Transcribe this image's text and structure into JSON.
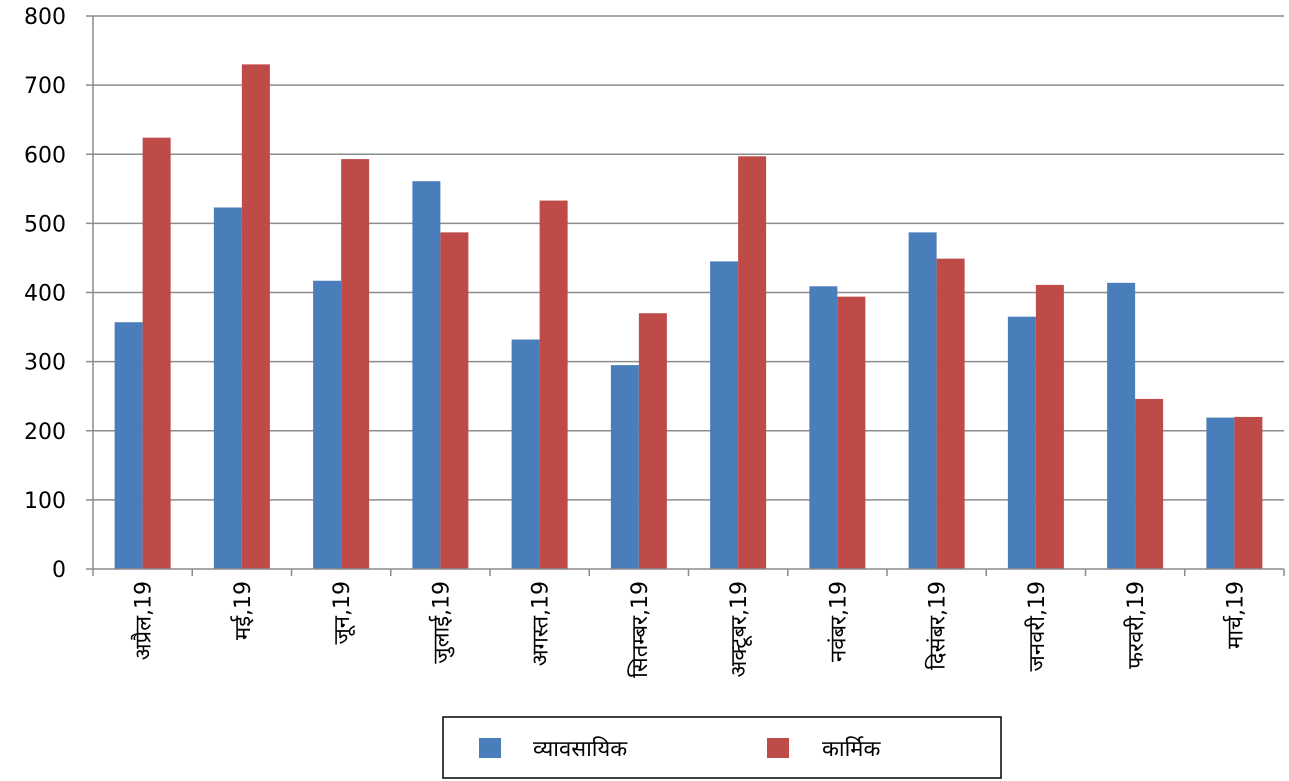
{
  "chart_data": {
    "type": "bar",
    "categories": [
      "अप्रैल,19",
      "मई,19",
      "जून,19",
      "जुलाई,19",
      "अगस्त,19",
      "सितम्बर,19",
      "अक्टूबर,19",
      "नवंबर,19",
      "दिसंबर,19",
      "जनवरी,19",
      "फरवरी,19",
      "मार्च,19"
    ],
    "series": [
      {
        "name": "व्यावसायिक",
        "color": "#4A7EBB",
        "values": [
          357,
          523,
          417,
          561,
          332,
          295,
          445,
          409,
          487,
          365,
          414,
          219
        ]
      },
      {
        "name": "कार्मिक",
        "color": "#BE4B48",
        "values": [
          624,
          730,
          593,
          487,
          533,
          370,
          597,
          394,
          449,
          411,
          246,
          220
        ]
      }
    ],
    "ylim": [
      0,
      800
    ],
    "yticks": [
      0,
      100,
      200,
      300,
      400,
      500,
      600,
      700,
      800
    ],
    "grid": true,
    "legend_position": "bottom"
  }
}
